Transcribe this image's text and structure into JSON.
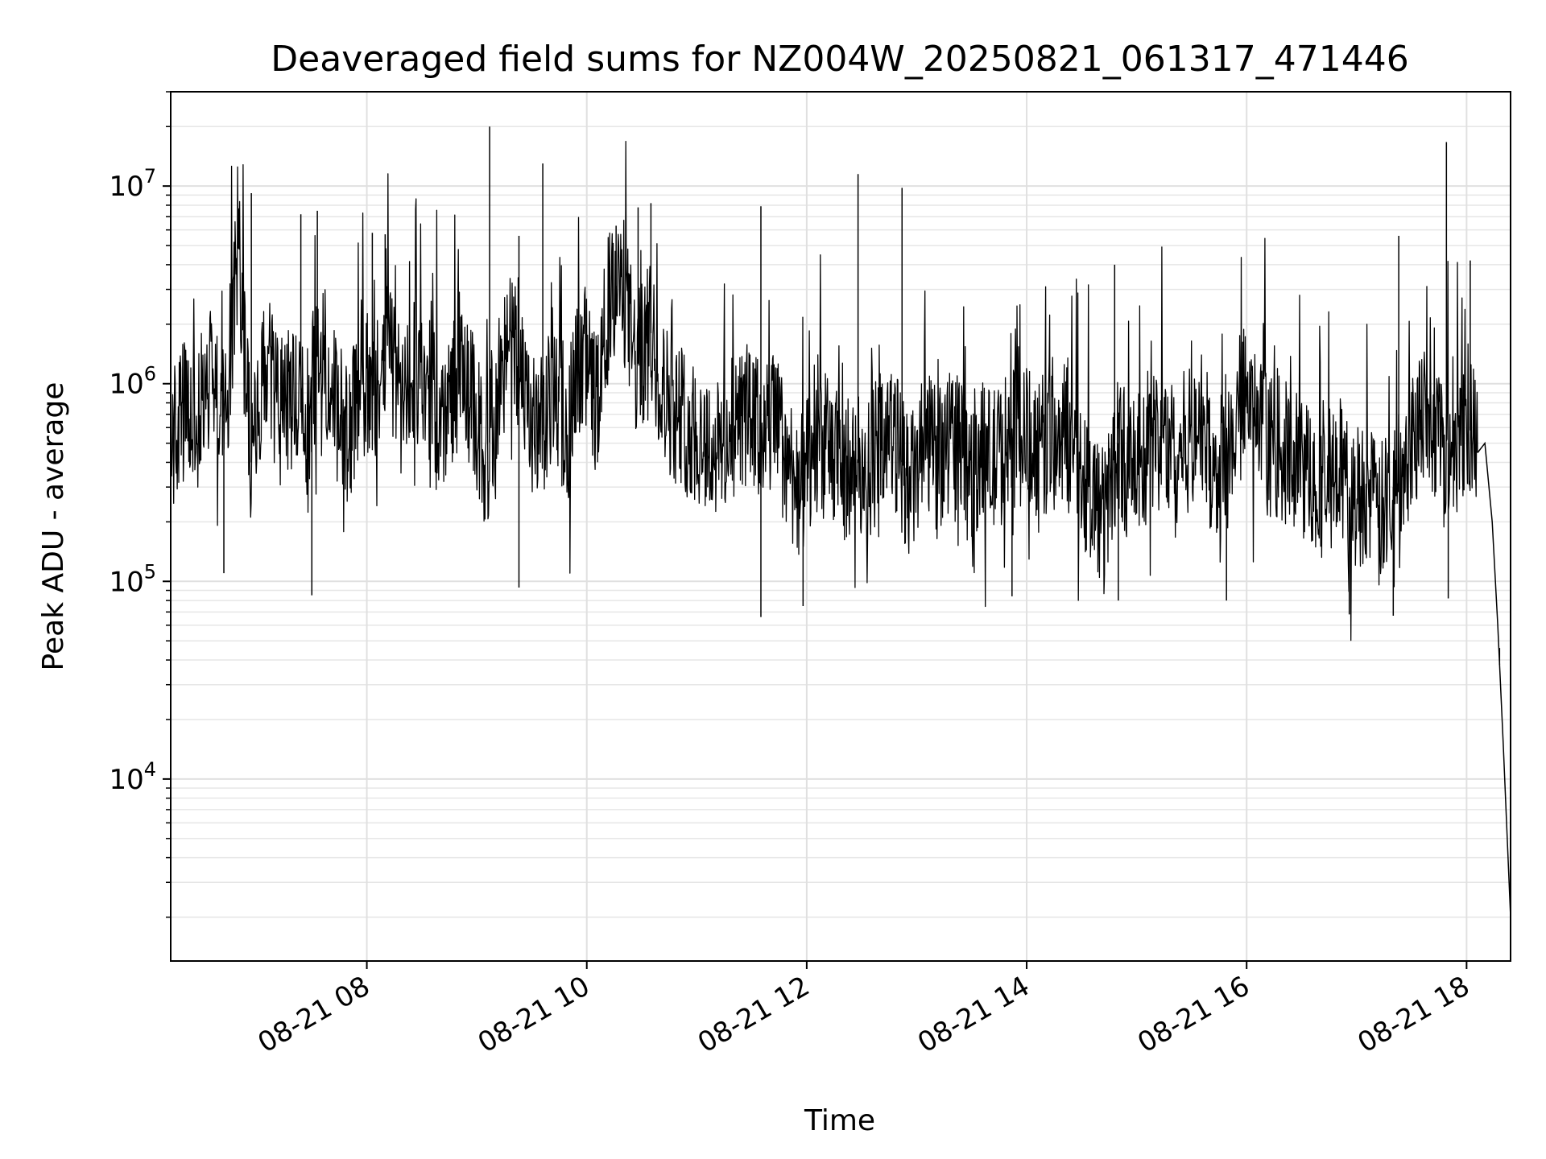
{
  "chart_data": {
    "type": "line",
    "title": "Deaveraged field sums for NZ004W_20250821_061317_471446",
    "xlabel": "Time",
    "ylabel": "Peak ADU - average",
    "xlim": [
      "2025-08-21 06:13",
      "2025-08-21 18:24"
    ],
    "ylim": [
      1200,
      30000000
    ],
    "yscale": "log",
    "grid": true,
    "line_color": "#000000",
    "x_ticks": [
      {
        "value": "2025-08-21 08:00",
        "label": "08-21 08"
      },
      {
        "value": "2025-08-21 10:00",
        "label": "08-21 10"
      },
      {
        "value": "2025-08-21 12:00",
        "label": "08-21 12"
      },
      {
        "value": "2025-08-21 14:00",
        "label": "08-21 14"
      },
      {
        "value": "2025-08-21 16:00",
        "label": "08-21 16"
      },
      {
        "value": "2025-08-21 18:00",
        "label": "08-21 18"
      }
    ],
    "y_ticks": [
      {
        "value": 10000,
        "base": "10",
        "exp": "4"
      },
      {
        "value": 100000,
        "base": "10",
        "exp": "5"
      },
      {
        "value": 1000000,
        "base": "10",
        "exp": "6"
      },
      {
        "value": 10000000,
        "base": "10",
        "exp": "7"
      }
    ],
    "series": [
      {
        "x": [
          "2025-08-21 06:13",
          "2025-08-21 06:20",
          "2025-08-21 06:27",
          "2025-08-21 06:35",
          "2025-08-21 06:42",
          "2025-08-21 06:50",
          "2025-08-21 06:57",
          "2025-08-21 07:05",
          "2025-08-21 07:12",
          "2025-08-21 07:20",
          "2025-08-21 07:27",
          "2025-08-21 07:35",
          "2025-08-21 07:42",
          "2025-08-21 07:50",
          "2025-08-21 07:57",
          "2025-08-21 08:05",
          "2025-08-21 08:12",
          "2025-08-21 08:20",
          "2025-08-21 08:27",
          "2025-08-21 08:35",
          "2025-08-21 08:42",
          "2025-08-21 08:50",
          "2025-08-21 08:57",
          "2025-08-21 09:05",
          "2025-08-21 09:12",
          "2025-08-21 09:20",
          "2025-08-21 09:27",
          "2025-08-21 09:35",
          "2025-08-21 09:42",
          "2025-08-21 09:50",
          "2025-08-21 09:57",
          "2025-08-21 10:05",
          "2025-08-21 10:12",
          "2025-08-21 10:20",
          "2025-08-21 10:27",
          "2025-08-21 10:35",
          "2025-08-21 10:42",
          "2025-08-21 10:50",
          "2025-08-21 10:57",
          "2025-08-21 11:05",
          "2025-08-21 11:12",
          "2025-08-21 11:20",
          "2025-08-21 11:27",
          "2025-08-21 11:35",
          "2025-08-21 11:42",
          "2025-08-21 11:50",
          "2025-08-21 11:57",
          "2025-08-21 12:05",
          "2025-08-21 12:12",
          "2025-08-21 12:20",
          "2025-08-21 12:27",
          "2025-08-21 12:35",
          "2025-08-21 12:42",
          "2025-08-21 12:50",
          "2025-08-21 12:57",
          "2025-08-21 13:05",
          "2025-08-21 13:12",
          "2025-08-21 13:20",
          "2025-08-21 13:27",
          "2025-08-21 13:35",
          "2025-08-21 13:42",
          "2025-08-21 13:50",
          "2025-08-21 13:57",
          "2025-08-21 14:05",
          "2025-08-21 14:12",
          "2025-08-21 14:20",
          "2025-08-21 14:27",
          "2025-08-21 14:35",
          "2025-08-21 14:42",
          "2025-08-21 14:50",
          "2025-08-21 14:57",
          "2025-08-21 15:05",
          "2025-08-21 15:12",
          "2025-08-21 15:20",
          "2025-08-21 15:27",
          "2025-08-21 15:35",
          "2025-08-21 15:42",
          "2025-08-21 15:50",
          "2025-08-21 15:57",
          "2025-08-21 16:05",
          "2025-08-21 16:12",
          "2025-08-21 16:20",
          "2025-08-21 16:27",
          "2025-08-21 16:35",
          "2025-08-21 16:42",
          "2025-08-21 16:50",
          "2025-08-21 16:57",
          "2025-08-21 17:05",
          "2025-08-21 17:12",
          "2025-08-21 17:20",
          "2025-08-21 17:27",
          "2025-08-21 17:35",
          "2025-08-21 17:42",
          "2025-08-21 17:50",
          "2025-08-21 17:57",
          "2025-08-21 18:05",
          "2025-08-21 18:10",
          "2025-08-21 18:14",
          "2025-08-21 18:17",
          "2025-08-21 18:20",
          "2025-08-21 18:24"
        ],
        "y": [
          500000,
          700000,
          600000,
          1200000,
          650000,
          5000000,
          400000,
          1300000,
          700000,
          900000,
          600000,
          1800000,
          800000,
          500000,
          1000000,
          900000,
          1500000,
          700000,
          1200000,
          900000,
          600000,
          1300000,
          800000,
          400000,
          900000,
          1800000,
          700000,
          500000,
          1000000,
          600000,
          1500000,
          800000,
          2500000,
          3000000,
          1200000,
          1800000,
          900000,
          700000,
          600000,
          500000,
          450000,
          600000,
          700000,
          550000,
          650000,
          400000,
          300000,
          450000,
          500000,
          350000,
          400000,
          380000,
          600000,
          450000,
          300000,
          500000,
          400000,
          600000,
          350000,
          450000,
          400000,
          500000,
          550000,
          500000,
          450000,
          600000,
          400000,
          300000,
          200000,
          500000,
          350000,
          400000,
          600000,
          450000,
          500000,
          700000,
          350000,
          400000,
          1000000,
          600000,
          500000,
          450000,
          400000,
          350000,
          300000,
          400000,
          250000,
          300000,
          200000,
          300000,
          500000,
          700000,
          600000,
          500000,
          550000,
          600000,
          500000,
          200000,
          60000,
          15000,
          2000
        ]
      }
    ],
    "spikes": [
      {
        "x": "2025-08-21 06:57",
        "y": 9200000
      },
      {
        "x": "2025-08-21 07:24",
        "y": 7200000
      },
      {
        "x": "2025-08-21 07:33",
        "y": 7500000
      },
      {
        "x": "2025-08-21 08:03",
        "y": 5800000
      },
      {
        "x": "2025-08-21 08:10",
        "y": 5700000
      },
      {
        "x": "2025-08-21 09:07",
        "y": 20000000
      },
      {
        "x": "2025-08-21 09:23",
        "y": 5600000
      },
      {
        "x": "2025-08-21 09:36",
        "y": 13000000
      },
      {
        "x": "2025-08-21 10:16",
        "y": 6300000
      },
      {
        "x": "2025-08-21 10:28",
        "y": 7800000
      },
      {
        "x": "2025-08-21 10:35",
        "y": 8200000
      },
      {
        "x": "2025-08-21 11:35",
        "y": 7900000
      },
      {
        "x": "2025-08-21 12:28",
        "y": 11500000
      },
      {
        "x": "2025-08-21 12:52",
        "y": 9800000
      },
      {
        "x": "2025-08-21 14:48",
        "y": 4000000
      },
      {
        "x": "2025-08-21 17:23",
        "y": 5600000
      },
      {
        "x": "2025-08-21 17:49",
        "y": 16700000
      },
      {
        "x": "2025-08-21 18:02",
        "y": 4200000
      }
    ],
    "dips": [
      {
        "x": "2025-08-21 06:42",
        "y": 110000
      },
      {
        "x": "2025-08-21 07:30",
        "y": 85000
      },
      {
        "x": "2025-08-21 09:23",
        "y": 93000
      },
      {
        "x": "2025-08-21 11:35",
        "y": 66000
      },
      {
        "x": "2025-08-21 11:58",
        "y": 75000
      },
      {
        "x": "2025-08-21 13:52",
        "y": 84000
      },
      {
        "x": "2025-08-21 14:50",
        "y": 80000
      },
      {
        "x": "2025-08-21 15:49",
        "y": 80000
      },
      {
        "x": "2025-08-21 16:56",
        "y": 68000
      },
      {
        "x": "2025-08-21 17:20",
        "y": 67000
      },
      {
        "x": "2025-08-21 17:50",
        "y": 82000
      },
      {
        "x": "2025-08-21 18:18",
        "y": 46000
      }
    ]
  }
}
